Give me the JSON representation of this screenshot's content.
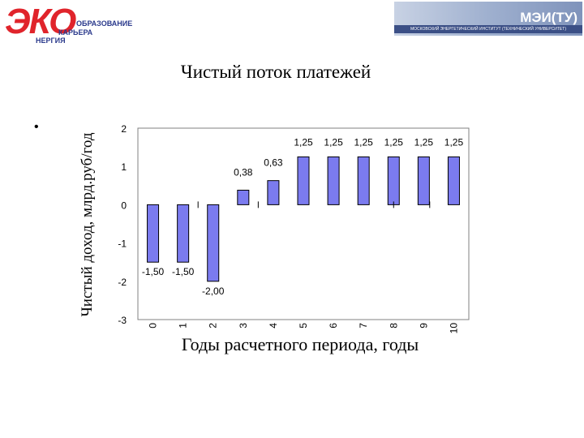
{
  "header": {
    "logo_big": "ЭКО",
    "logo_line1": "ОБРАЗОВАНИЕ",
    "logo_line2": "КАРЬЕРА",
    "logo_line3": "НЕРГИЯ",
    "banner_title": "МЭИ(ТУ)",
    "banner_subtitle": "МОСКОВСКИЙ ЭНЕРГЕТИЧЕСКИЙ ИНСТИТУТ (ТЕХНИЧЕСКИЙ УНИВЕРСИТЕТ)"
  },
  "bullet": "•",
  "colors": {
    "bar_fill": "#7b7bef",
    "bar_stroke": "#000000",
    "text": "#000000",
    "brand_red": "#e0242b",
    "brand_blue": "#2b3a8c"
  },
  "chart_data": {
    "type": "bar",
    "title": "Чистый поток платежей",
    "xlabel": "Годы расчетного периода, годы",
    "ylabel": "Чистый доход, млрд.руб/год",
    "categories": [
      "0",
      "1",
      "2",
      "3",
      "4",
      "5",
      "6",
      "7",
      "8",
      "9",
      "10"
    ],
    "values": [
      -1.5,
      -1.5,
      -2.0,
      0.38,
      0.63,
      1.25,
      1.25,
      1.25,
      1.25,
      1.25,
      1.25
    ],
    "data_labels": [
      "-1,50",
      "-1,50",
      "-2,00",
      "0,38",
      "0,63",
      "1,25",
      "1,25",
      "1,25",
      "1,25",
      "1,25",
      "1,25"
    ],
    "ylim": [
      -3,
      2
    ],
    "yticks": [
      2,
      1,
      0,
      -1,
      -2,
      -3
    ],
    "ytick_labels": [
      "2",
      "1",
      "0",
      "-1",
      "-2",
      "-3"
    ],
    "grid": false,
    "legend": "none"
  }
}
